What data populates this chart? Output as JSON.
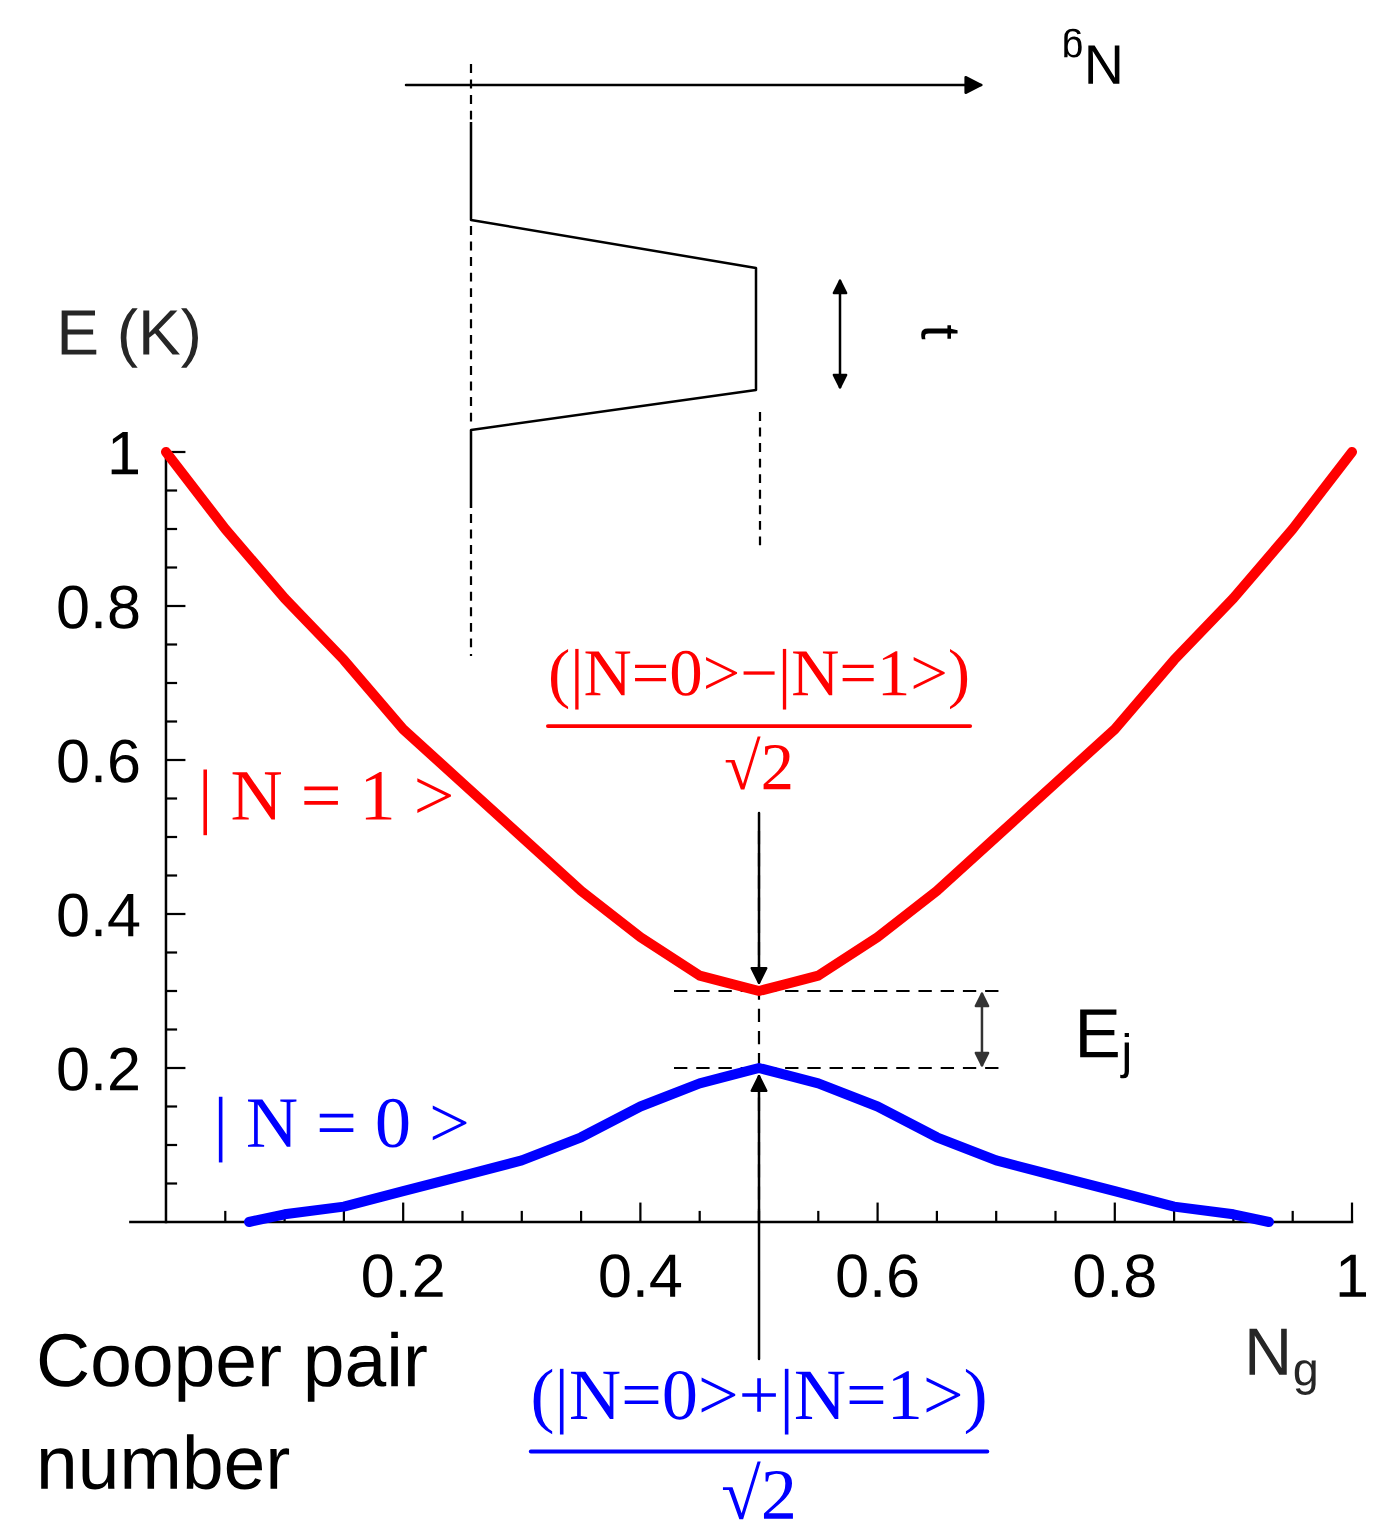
{
  "chart_data": {
    "type": "line",
    "xlabel": "N$_{g}$",
    "ylabel": "E (K)",
    "xlim": [
      -0.03,
      1
    ],
    "ylim": [
      0,
      1
    ],
    "xticks": [
      {
        "value": 0.05,
        "label": null
      },
      {
        "value": 0.1,
        "label": null
      },
      {
        "value": 0.15,
        "label": null
      },
      0.2,
      {
        "value": 0.25,
        "label": null
      },
      {
        "value": 0.3,
        "label": null
      },
      {
        "value": 0.35,
        "label": null
      },
      0.4,
      {
        "value": 0.45,
        "label": null
      },
      {
        "value": 0.5,
        "label": null
      },
      {
        "value": 0.55,
        "label": null
      },
      0.6,
      {
        "value": 0.65,
        "label": null
      },
      {
        "value": 0.7,
        "label": null
      },
      {
        "value": 0.75,
        "label": null
      },
      0.8,
      {
        "value": 0.85,
        "label": null
      },
      {
        "value": 0.9,
        "label": null
      },
      {
        "value": 0.95,
        "label": null
      },
      1
    ],
    "yticks": [
      {
        "value": 0.05,
        "label": null
      },
      {
        "value": 0.1,
        "label": null
      },
      {
        "value": 0.15,
        "label": null
      },
      0.2,
      {
        "value": 0.25,
        "label": null
      },
      {
        "value": 0.3,
        "label": null
      },
      {
        "value": 0.35,
        "label": null
      },
      0.4,
      {
        "value": 0.45,
        "label": null
      },
      {
        "value": 0.5,
        "label": null
      },
      {
        "value": 0.55,
        "label": null
      },
      0.6,
      {
        "value": 0.65,
        "label": null
      },
      {
        "value": 0.7,
        "label": null
      },
      {
        "value": 0.75,
        "label": null
      },
      0.8,
      {
        "value": 0.85,
        "label": null
      },
      {
        "value": 0.9,
        "label": null
      },
      {
        "value": 0.95,
        "label": null
      },
      1
    ],
    "series": [
      {
        "name": "| N = 1 >",
        "color": "#ff0000",
        "x": [
          0,
          0.05,
          0.1,
          0.15,
          0.2,
          0.25,
          0.3,
          0.35,
          0.4,
          0.45,
          0.475,
          0.5,
          0.525,
          0.55,
          0.6,
          0.65,
          0.7,
          0.75,
          0.8,
          0.85,
          0.9,
          0.95,
          1
        ],
        "values": [
          1.0,
          0.9,
          0.81,
          0.73,
          0.64,
          0.57,
          0.5,
          0.43,
          0.37,
          0.32,
          0.31,
          0.3,
          0.31,
          0.32,
          0.37,
          0.43,
          0.5,
          0.57,
          0.64,
          0.73,
          0.81,
          0.9,
          1.0
        ]
      },
      {
        "name": "| N = 0 >",
        "color": "#0000ff",
        "x": [
          0.07,
          0.1,
          0.15,
          0.2,
          0.25,
          0.3,
          0.35,
          0.4,
          0.45,
          0.475,
          0.5,
          0.525,
          0.55,
          0.6,
          0.65,
          0.7,
          0.75,
          0.8,
          0.85,
          0.9,
          0.93
        ],
        "values": [
          0,
          0.01,
          0.02,
          0.04,
          0.06,
          0.08,
          0.11,
          0.15,
          0.18,
          0.19,
          0.2,
          0.19,
          0.18,
          0.15,
          0.11,
          0.08,
          0.06,
          0.04,
          0.02,
          0.01,
          0
        ]
      }
    ],
    "ref_lines": [
      {
        "axis": "x",
        "value": 0.5,
        "line_style": "dashed"
      },
      {
        "axis": "y",
        "value": 0.3,
        "line_style": "dashed"
      },
      {
        "axis": "y",
        "value": 0.2,
        "line_style": "dashed"
      }
    ],
    "annotations": [
      "E$_{j}$",
      "Cooper pair\nnumber",
      {
        "text": "(|N=0>−|N=1>)\n√2",
        "x": 0.5,
        "y": 0.3
      },
      {
        "text": "(|N=0>+|N=1>)\n√2",
        "x": 0.5,
        "y": 0.2
      },
      "N$_{g}$",
      "t"
    ]
  }
}
